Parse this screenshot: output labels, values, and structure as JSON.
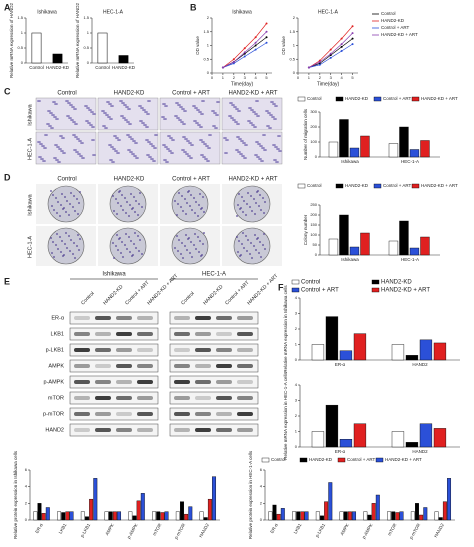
{
  "chart_data": [
    {
      "type": "bar",
      "panel": "A",
      "title": "Ishikawa",
      "ylabel": "Relative mRNA expression of HAND2",
      "categories": [
        "Control",
        "HAND2-KD"
      ],
      "values": [
        1,
        0.3
      ],
      "colors": [
        "#ffffff",
        "#000000"
      ],
      "ylim": [
        0,
        1.5
      ],
      "yticks": [
        0,
        0.5,
        1,
        1.5
      ],
      "legend": false
    },
    {
      "type": "bar",
      "title": "HEC-1-A",
      "ylabel": "Relative mRNA expression of HAND2",
      "categories": [
        "Control",
        "HAND2-KD"
      ],
      "values": [
        1,
        0.25
      ],
      "colors": [
        "#ffffff",
        "#000000"
      ],
      "ylim": [
        0,
        1.5
      ],
      "yticks": [
        0,
        0.5,
        1,
        1.5
      ],
      "legend": false
    },
    {
      "type": "line",
      "panel": "B",
      "title": "Ishikawa",
      "xlabel": "Time(day)",
      "ylabel": "OD value",
      "x": [
        1,
        2,
        3,
        4,
        5
      ],
      "xlim": [
        0,
        5.5
      ],
      "xticks": [
        0,
        1,
        2,
        3,
        4,
        5
      ],
      "ylim": [
        0,
        2
      ],
      "yticks": [
        0,
        0.5,
        1,
        1.5,
        2
      ],
      "legend": false,
      "series": [
        {
          "name": "Control",
          "color": "#000000",
          "values": [
            0.2,
            0.4,
            0.7,
            1.0,
            1.3
          ]
        },
        {
          "name": "HAND2-KD",
          "color": "#e02020",
          "values": [
            0.2,
            0.5,
            0.9,
            1.3,
            1.8
          ]
        },
        {
          "name": "Control + ART",
          "color": "#2b50d8",
          "values": [
            0.2,
            0.35,
            0.6,
            0.85,
            1.1
          ]
        },
        {
          "name": "HAND2-KD + ART",
          "color": "#8a3fb0",
          "values": [
            0.2,
            0.4,
            0.75,
            1.1,
            1.5
          ]
        }
      ]
    },
    {
      "type": "line",
      "title": "HEC-1-A",
      "xlabel": "Time(day)",
      "ylabel": "OD value",
      "x": [
        1,
        2,
        3,
        4,
        5
      ],
      "xlim": [
        0,
        5.5
      ],
      "xticks": [
        0,
        1,
        2,
        3,
        4,
        5
      ],
      "ylim": [
        0,
        2
      ],
      "yticks": [
        0,
        0.5,
        1,
        1.5,
        2
      ],
      "legend": true,
      "series": [
        {
          "name": "Control",
          "color": "#000000",
          "values": [
            0.2,
            0.35,
            0.65,
            0.95,
            1.25
          ]
        },
        {
          "name": "HAND2-KD",
          "color": "#e02020",
          "values": [
            0.2,
            0.45,
            0.85,
            1.25,
            1.7
          ]
        },
        {
          "name": "Control + ART",
          "color": "#2b50d8",
          "values": [
            0.2,
            0.3,
            0.55,
            0.8,
            1.05
          ]
        },
        {
          "name": "HAND2-KD + ART",
          "color": "#8a3fb0",
          "values": [
            0.2,
            0.4,
            0.7,
            1.05,
            1.45
          ]
        }
      ]
    },
    {
      "type": "bar",
      "ylabel": "Number of migration cells",
      "categories": [
        "Ishikawa",
        "HEC-1-A"
      ],
      "ylim": [
        0,
        300
      ],
      "yticks": [
        0,
        100,
        200,
        300
      ],
      "legend": true,
      "series": [
        {
          "name": "Control",
          "color": "#ffffff",
          "values": [
            100,
            90
          ]
        },
        {
          "name": "HAND2-KD",
          "color": "#000000",
          "values": [
            250,
            200
          ]
        },
        {
          "name": "Control + ART",
          "color": "#2b50d8",
          "values": [
            60,
            50
          ]
        },
        {
          "name": "HAND2-KD + ART",
          "color": "#e02020",
          "values": [
            140,
            110
          ]
        }
      ]
    },
    {
      "type": "bar",
      "ylabel": "Colony number",
      "categories": [
        "Ishikawa",
        "HEC-1-A"
      ],
      "ylim": [
        0,
        250
      ],
      "yticks": [
        0,
        50,
        100,
        150,
        200,
        250
      ],
      "legend": true,
      "series": [
        {
          "name": "Control",
          "color": "#ffffff",
          "values": [
            80,
            70
          ]
        },
        {
          "name": "HAND2-KD",
          "color": "#000000",
          "values": [
            200,
            170
          ]
        },
        {
          "name": "Control + ART",
          "color": "#2b50d8",
          "values": [
            40,
            35
          ]
        },
        {
          "name": "HAND2-KD + ART",
          "color": "#e02020",
          "values": [
            110,
            90
          ]
        }
      ]
    },
    {
      "type": "bar",
      "panel": "F",
      "ylabel": "Relative mRNA expression in Ishikawa cells",
      "categories": [
        "ER-α",
        "HAND2"
      ],
      "ylim": [
        0,
        4
      ],
      "yticks": [
        0,
        1,
        2,
        3,
        4
      ],
      "legend": true,
      "series": [
        {
          "name": "Control",
          "color": "#ffffff",
          "values": [
            1,
            1
          ]
        },
        {
          "name": "HAND2-KD",
          "color": "#000000",
          "values": [
            2.8,
            0.3
          ]
        },
        {
          "name": "Control + ART",
          "color": "#2b50d8",
          "values": [
            0.6,
            1.3
          ]
        },
        {
          "name": "HAND2-KD + ART",
          "color": "#e02020",
          "values": [
            1.7,
            1.1
          ]
        }
      ]
    },
    {
      "type": "bar",
      "ylabel": "Relative mRNA expression in HEC-1-A cells",
      "categories": [
        "ER-α",
        "HAND2"
      ],
      "ylim": [
        0,
        4
      ],
      "yticks": [
        0,
        1,
        2,
        3,
        4
      ],
      "legend": false,
      "series": [
        {
          "name": "Control",
          "color": "#ffffff",
          "values": [
            1,
            1
          ]
        },
        {
          "name": "HAND2-KD",
          "color": "#000000",
          "values": [
            2.7,
            0.3
          ]
        },
        {
          "name": "Control + ART",
          "color": "#2b50d8",
          "values": [
            0.5,
            1.5
          ]
        },
        {
          "name": "HAND2-KD + ART",
          "color": "#e02020",
          "values": [
            1.5,
            1.2
          ]
        }
      ]
    },
    {
      "type": "bar",
      "ylabel": "Relative protein expression in Ishikawa cells",
      "categories": [
        "ER-α",
        "LKB1",
        "p-LKB1",
        "AMPK",
        "p-AMPK",
        "mTOR",
        "p-mTOR",
        "HAND2"
      ],
      "ylim": [
        0,
        6
      ],
      "yticks": [
        0,
        2,
        4,
        6
      ],
      "legend": false,
      "series": [
        {
          "name": "Control",
          "color": "#ffffff",
          "values": [
            1,
            1,
            1,
            1,
            1,
            1,
            1,
            1
          ]
        },
        {
          "name": "HAND2-KD",
          "color": "#000000",
          "values": [
            2.0,
            0.9,
            0.4,
            1,
            0.5,
            1,
            2.2,
            0.3
          ]
        },
        {
          "name": "Control + ART",
          "color": "#e02020",
          "values": [
            0.8,
            1,
            2.5,
            1,
            2.3,
            0.9,
            0.7,
            2.5
          ]
        },
        {
          "name": "HAND2-KD + ART",
          "color": "#2b50d8",
          "values": [
            1.5,
            1,
            5,
            1,
            3.2,
            1,
            1.6,
            5.2
          ]
        }
      ]
    },
    {
      "type": "bar",
      "ylabel": "Relative protein expression in HEC-1-A cells",
      "categories": [
        "ER-α",
        "LKB1",
        "p-LKB1",
        "AMPK",
        "p-AMPK",
        "mTOR",
        "p-mTOR",
        "HAND2"
      ],
      "ylim": [
        0,
        6
      ],
      "yticks": [
        0,
        2,
        4,
        6
      ],
      "legend": true,
      "series": [
        {
          "name": "Control",
          "color": "#ffffff",
          "values": [
            1,
            1,
            1,
            1,
            1,
            1,
            1,
            1
          ]
        },
        {
          "name": "HAND2-KD",
          "color": "#000000",
          "values": [
            1.8,
            1,
            0.5,
            1,
            0.6,
            1,
            2.0,
            0.3
          ]
        },
        {
          "name": "Control + ART",
          "color": "#e02020",
          "values": [
            0.7,
            1,
            2.2,
            1,
            2.0,
            0.9,
            0.6,
            2.2
          ]
        },
        {
          "name": "HAND2-KD + ART",
          "color": "#2b50d8",
          "values": [
            1.4,
            1,
            4.5,
            1,
            3.0,
            1,
            1.5,
            5
          ]
        }
      ]
    }
  ],
  "images": {
    "C": {
      "panel": "C",
      "columns": [
        "Control",
        "HAND2-KD",
        "Control + ART",
        "HAND2-KD + ART"
      ],
      "rows": [
        "Ishikawa",
        "HEC-1-A"
      ]
    },
    "D": {
      "panel": "D",
      "columns": [
        "Control",
        "HAND2-KD",
        "Control + ART",
        "HAND2-KD + ART"
      ],
      "rows": [
        "Ishikawa",
        "HEC-1-A"
      ]
    },
    "E": {
      "panel": "E",
      "groups": [
        "Ishikawa",
        "HEC-1-A"
      ],
      "lanes": [
        "Control",
        "HAND2-KD",
        "Control + ART",
        "HAND2-KD + ART"
      ],
      "rows": [
        "ER-α",
        "LKB1",
        "p-LKB1",
        "AMPK",
        "p-AMPK",
        "mTOR",
        "p-mTOR",
        "HAND2"
      ]
    }
  }
}
